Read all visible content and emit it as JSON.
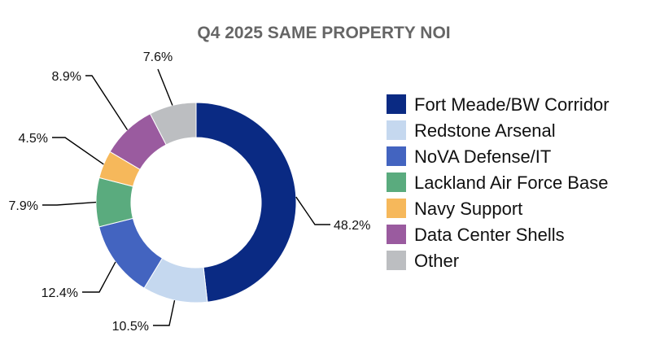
{
  "chart_data": {
    "type": "pie",
    "variant": "donut",
    "title": "Q4 2025 SAME PROPERTY NOI",
    "unit": "%",
    "legend_position": "right",
    "slices": [
      {
        "label": "Fort Meade/BW Corridor",
        "value": 48.2,
        "display": "48.2%",
        "color": "#0a2a83"
      },
      {
        "label": "Redstone Arsenal",
        "value": 10.5,
        "display": "10.5%",
        "color": "#c5d8ef"
      },
      {
        "label": "NoVA Defense/IT",
        "value": 12.4,
        "display": "12.4%",
        "color": "#4364c0"
      },
      {
        "label": "Lackland Air Force Base",
        "value": 7.9,
        "display": "7.9%",
        "color": "#5aab7e"
      },
      {
        "label": "Navy Support",
        "value": 4.5,
        "display": "4.5%",
        "color": "#f6b85b"
      },
      {
        "label": "Data Center Shells",
        "value": 8.9,
        "display": "8.9%",
        "color": "#9a5b9f"
      },
      {
        "label": "Other",
        "value": 7.6,
        "display": "7.6%",
        "color": "#bcbec1"
      }
    ]
  }
}
